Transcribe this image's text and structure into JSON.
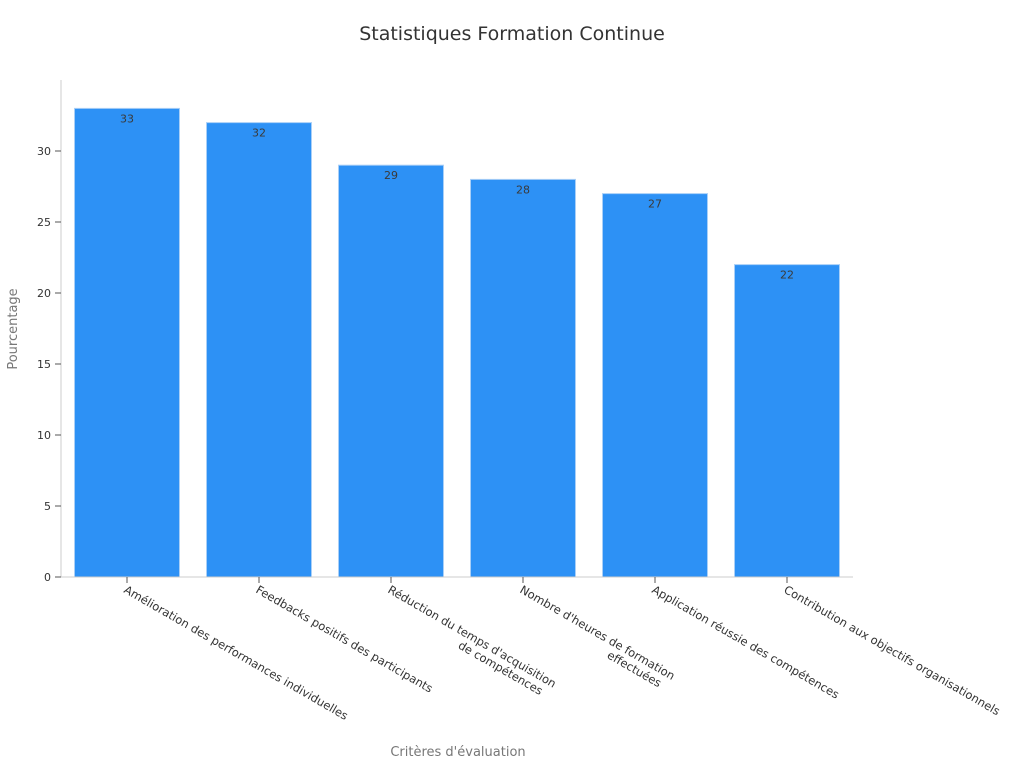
{
  "chart_data": {
    "type": "bar",
    "title": "Statistiques Formation Continue",
    "xlabel": "Critères d'évaluation",
    "ylabel": "Pourcentage",
    "ylim": [
      0,
      35
    ],
    "yticks": [
      0,
      5,
      10,
      15,
      20,
      25,
      30
    ],
    "grid": false,
    "categories": [
      [
        "Amélioration des performances individuelles"
      ],
      [
        "Feedbacks positifs des participants"
      ],
      [
        "Réduction du temps d'acquisition",
        "de compétences"
      ],
      [
        "Nombre d'heures de formation",
        "effectuées"
      ],
      [
        "Application réussie des compétences"
      ],
      [
        "Contribution aux objectifs organisationnels"
      ]
    ],
    "values": [
      33,
      32,
      29,
      28,
      27,
      22
    ],
    "bar_color": "#2d91f5",
    "data_labels": true
  }
}
